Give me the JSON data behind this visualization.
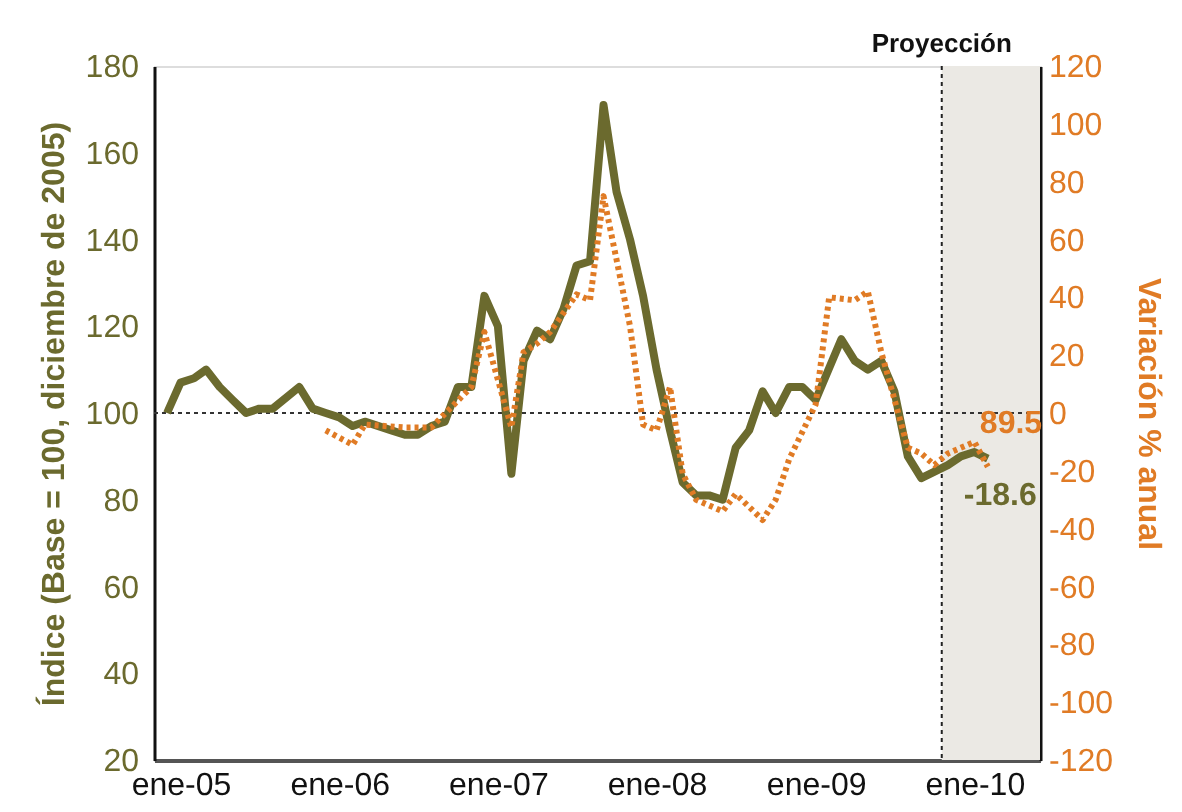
{
  "chart_data": {
    "type": "line",
    "ylabel": "Índice (Base = 100, diciembre de 2005)",
    "y2label": "Variación % anual",
    "xlim": [
      "2004-11",
      "2010-06"
    ],
    "xticks": [
      {
        "value": "2005-01",
        "label": "ene-05"
      },
      {
        "value": "2006-01",
        "label": "ene-06"
      },
      {
        "value": "2007-01",
        "label": "ene-07"
      },
      {
        "value": "2008-01",
        "label": "ene-08"
      },
      {
        "value": "2009-01",
        "label": "ene-09"
      },
      {
        "value": "2010-01",
        "label": "ene-10"
      }
    ],
    "ylim": [
      20,
      180
    ],
    "yticks": [
      20,
      40,
      60,
      80,
      100,
      120,
      140,
      160,
      180
    ],
    "y2lim": [
      -120,
      120
    ],
    "y2ticks": [
      -120,
      -100,
      -80,
      -60,
      -40,
      -20,
      0,
      20,
      40,
      60,
      80,
      100,
      120
    ],
    "grid": false,
    "series": [
      {
        "color": "#6b6a2e",
        "line_style": "solid",
        "x": [
          "2004-12",
          "2005-01",
          "2005-02",
          "2005-03",
          "2005-04",
          "2005-05",
          "2005-06",
          "2005-07",
          "2005-08",
          "2005-10",
          "2005-11",
          "2005-12",
          "2006-01",
          "2006-02",
          "2006-03",
          "2006-05",
          "2006-06",
          "2006-07",
          "2006-08",
          "2006-09",
          "2006-10",
          "2006-11",
          "2006-12",
          "2007-01",
          "2007-02",
          "2007-03",
          "2007-04",
          "2007-05",
          "2007-06",
          "2007-07",
          "2007-08",
          "2007-09",
          "2007-10",
          "2007-11",
          "2007-12",
          "2008-01",
          "2008-02",
          "2008-03",
          "2008-04",
          "2008-05",
          "2008-06",
          "2008-07",
          "2008-08",
          "2008-09",
          "2008-10",
          "2008-11",
          "2008-12",
          "2009-01",
          "2009-03",
          "2009-04",
          "2009-05",
          "2009-06",
          "2009-07",
          "2009-08",
          "2009-09",
          "2009-11",
          "2009-12",
          "2010-01",
          "2010-02"
        ],
        "values": [
          100,
          107,
          108,
          110,
          106,
          103,
          100,
          101,
          101,
          106,
          101,
          100,
          99,
          97,
          98,
          96,
          95,
          95,
          97,
          98,
          106,
          106,
          127,
          120,
          86,
          112,
          119,
          117,
          124,
          134,
          135,
          171,
          151,
          140,
          127,
          110,
          96,
          84,
          81,
          81,
          80,
          92,
          96,
          105,
          100,
          106,
          106,
          103,
          117,
          112,
          110,
          112,
          105,
          90,
          85,
          88,
          90,
          91,
          89.5
        ]
      },
      {
        "color": "#e07b25",
        "line_style": "dotted",
        "axis": "y2",
        "x": [
          "2005-12",
          "2006-02",
          "2006-03",
          "2006-06",
          "2006-08",
          "2006-11",
          "2006-12",
          "2007-02",
          "2007-03",
          "2007-04",
          "2007-05",
          "2007-07",
          "2007-08",
          "2007-09",
          "2007-10",
          "2007-11",
          "2007-12",
          "2008-01",
          "2008-02",
          "2008-03",
          "2008-04",
          "2008-06",
          "2008-07",
          "2008-09",
          "2008-10",
          "2008-11",
          "2009-01",
          "2009-02",
          "2009-04",
          "2009-05",
          "2009-06",
          "2009-08",
          "2009-09",
          "2009-10",
          "2009-11",
          "2010-01",
          "2010-02"
        ],
        "values": [
          -6,
          -11,
          -4,
          -5,
          -5,
          9,
          28,
          -5,
          21,
          24,
          28,
          41,
          39,
          75,
          53,
          30,
          -4,
          -6,
          9,
          -21,
          -30,
          -34,
          -28,
          -37,
          -30,
          -16,
          3,
          40,
          39,
          42,
          21,
          -12,
          -14,
          -18,
          -14,
          -10,
          -18.6
        ]
      }
    ],
    "ref_lines": [
      {
        "axis": "y",
        "value": 100,
        "color": "#333333",
        "line_style": "dotted"
      },
      {
        "axis": "x",
        "value": "2009-10-18",
        "color": "#222222",
        "line_style": "dotted"
      }
    ],
    "bands": [
      {
        "axis": "x",
        "from": "2009-10-18",
        "to": "2010-06",
        "label": "Proyección",
        "color": "#ebe9e4"
      }
    ],
    "annotations": [
      {
        "text": "89.5",
        "x": "2010-02",
        "y": 89.5
      },
      "-18.6"
    ]
  }
}
